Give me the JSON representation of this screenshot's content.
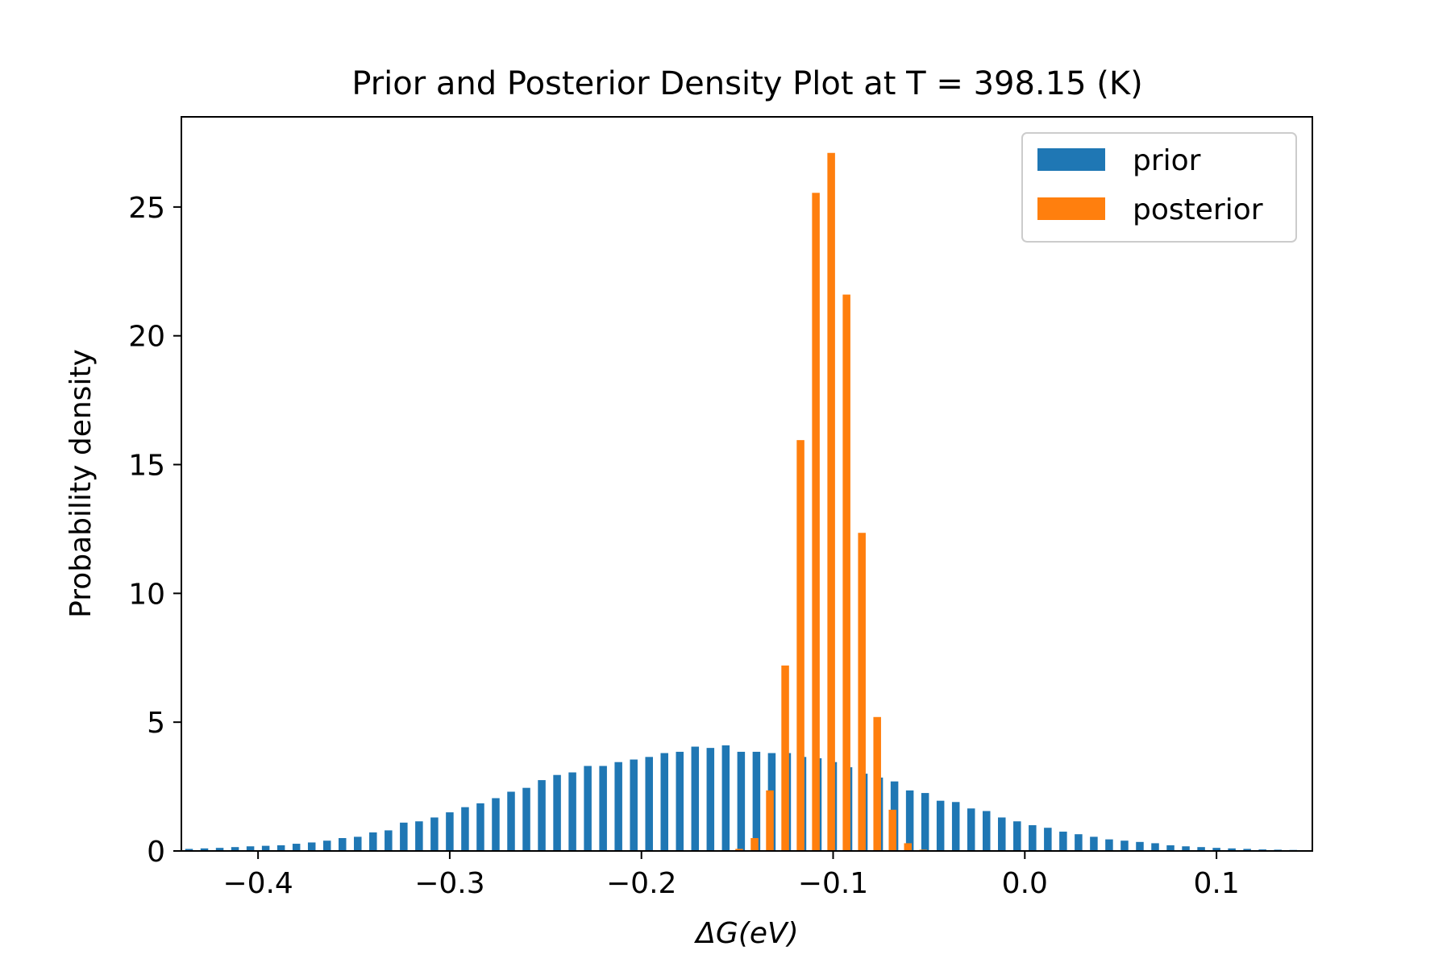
{
  "chart_data": {
    "type": "bar",
    "title": "Prior and Posterior Density Plot at T = 398.15 (K)",
    "xlabel": "ΔG(eV)",
    "ylabel": "Probability density",
    "xlim": [
      -0.44,
      0.15
    ],
    "ylim": [
      0,
      28.5
    ],
    "xticks": [
      -0.4,
      -0.3,
      -0.2,
      -0.1,
      0.0,
      0.1
    ],
    "xtick_labels": [
      "−0.4",
      "−0.3",
      "−0.2",
      "−0.1",
      "0.0",
      "0.1"
    ],
    "yticks": [
      0,
      5,
      10,
      15,
      20,
      25
    ],
    "ytick_labels": [
      "0",
      "5",
      "10",
      "15",
      "20",
      "25"
    ],
    "legend_placement": "top-right",
    "grid": false,
    "series": [
      {
        "name": "prior",
        "color": "#1f77b4",
        "x": [
          -0.436,
          -0.428,
          -0.42,
          -0.412,
          -0.404,
          -0.396,
          -0.388,
          -0.38,
          -0.372,
          -0.364,
          -0.356,
          -0.348,
          -0.34,
          -0.332,
          -0.324,
          -0.316,
          -0.308,
          -0.3,
          -0.292,
          -0.284,
          -0.276,
          -0.268,
          -0.26,
          -0.252,
          -0.244,
          -0.236,
          -0.228,
          -0.22,
          -0.212,
          -0.204,
          -0.196,
          -0.188,
          -0.18,
          -0.172,
          -0.164,
          -0.156,
          -0.148,
          -0.14,
          -0.132,
          -0.124,
          -0.116,
          -0.108,
          -0.1,
          -0.092,
          -0.084,
          -0.076,
          -0.068,
          -0.06,
          -0.052,
          -0.044,
          -0.036,
          -0.028,
          -0.02,
          -0.012,
          -0.004,
          0.004,
          0.012,
          0.02,
          0.028,
          0.036,
          0.044,
          0.052,
          0.06,
          0.068,
          0.076,
          0.084,
          0.092,
          0.1,
          0.108,
          0.116,
          0.124,
          0.132,
          0.14
        ],
        "values": [
          0.08,
          0.1,
          0.12,
          0.15,
          0.18,
          0.2,
          0.22,
          0.28,
          0.33,
          0.4,
          0.5,
          0.55,
          0.72,
          0.8,
          1.1,
          1.15,
          1.3,
          1.5,
          1.7,
          1.85,
          2.05,
          2.3,
          2.45,
          2.75,
          2.95,
          3.05,
          3.3,
          3.3,
          3.45,
          3.55,
          3.65,
          3.8,
          3.85,
          4.05,
          4.0,
          4.1,
          3.85,
          3.85,
          3.8,
          3.8,
          3.65,
          3.6,
          3.45,
          3.25,
          3.0,
          2.85,
          2.7,
          2.35,
          2.25,
          1.95,
          1.9,
          1.65,
          1.55,
          1.3,
          1.15,
          1.0,
          0.9,
          0.75,
          0.65,
          0.55,
          0.45,
          0.4,
          0.35,
          0.3,
          0.22,
          0.18,
          0.15,
          0.12,
          0.1,
          0.08,
          0.06,
          0.05,
          0.04
        ]
      },
      {
        "name": "posterior",
        "color": "#ff7f0e",
        "x": [
          -0.149,
          -0.141,
          -0.133,
          -0.125,
          -0.117,
          -0.109,
          -0.101,
          -0.093,
          -0.085,
          -0.077,
          -0.069,
          -0.061,
          -0.053,
          -0.045
        ],
        "values": [
          0.08,
          0.5,
          2.35,
          7.2,
          15.95,
          25.55,
          27.1,
          21.6,
          12.35,
          5.2,
          1.6,
          0.3,
          0.05,
          0.02
        ]
      }
    ]
  }
}
